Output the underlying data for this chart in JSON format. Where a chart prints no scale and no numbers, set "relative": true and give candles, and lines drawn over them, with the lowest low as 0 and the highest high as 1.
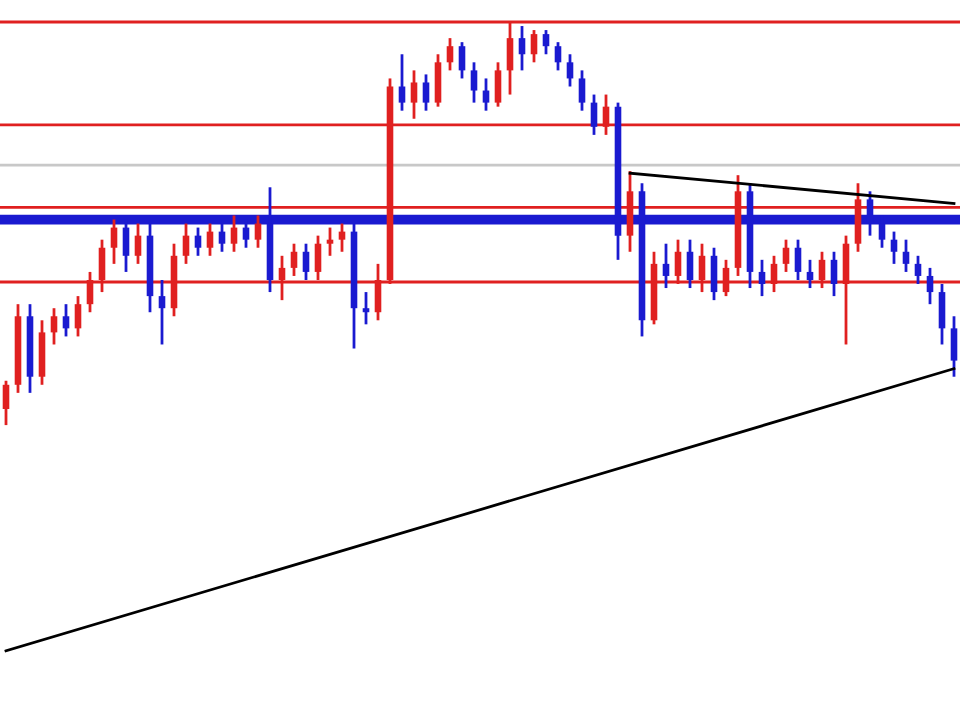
{
  "chart_data": {
    "type": "candlestick",
    "relative": true,
    "grid": false,
    "categories": [
      null,
      null,
      null,
      null,
      null,
      null,
      null,
      null,
      null,
      null,
      null,
      null,
      null,
      null,
      null,
      null,
      null,
      null,
      null,
      null,
      null,
      null,
      null,
      null,
      null,
      null,
      null,
      null,
      null,
      null,
      null,
      null,
      null,
      null,
      null,
      null,
      null,
      null,
      null,
      null,
      null,
      null,
      null,
      null,
      null,
      null,
      null,
      null,
      null,
      null,
      null,
      null,
      null,
      null,
      null,
      null,
      null,
      null,
      null,
      null,
      null,
      null,
      null,
      null,
      null,
      null,
      null,
      null,
      null,
      null,
      null,
      null,
      null,
      null,
      null,
      null,
      null,
      null,
      null,
      null
    ],
    "series": [
      {
        "ohlc": [
          [
            0.04,
            0.11,
            0,
            0.1
          ],
          [
            0.1,
            0.3,
            0.08,
            0.27
          ],
          [
            0.27,
            0.3,
            0.08,
            0.12
          ],
          [
            0.12,
            0.26,
            0.1,
            0.23
          ],
          [
            0.23,
            0.29,
            0.2,
            0.27
          ],
          [
            0.27,
            0.3,
            0.22,
            0.24
          ],
          [
            0.24,
            0.32,
            0.22,
            0.3
          ],
          [
            0.3,
            0.38,
            0.28,
            0.36
          ],
          [
            0.36,
            0.46,
            0.33,
            0.44
          ],
          [
            0.44,
            0.51,
            0.4,
            0.49
          ],
          [
            0.49,
            0.51,
            0.38,
            0.42
          ],
          [
            0.42,
            0.5,
            0.4,
            0.47
          ],
          [
            0.47,
            0.5,
            0.28,
            0.32
          ],
          [
            0.32,
            0.36,
            0.2,
            0.29
          ],
          [
            0.29,
            0.45,
            0.27,
            0.42
          ],
          [
            0.42,
            0.5,
            0.4,
            0.47
          ],
          [
            0.47,
            0.49,
            0.42,
            0.44
          ],
          [
            0.44,
            0.5,
            0.42,
            0.48
          ],
          [
            0.48,
            0.5,
            0.43,
            0.45
          ],
          [
            0.45,
            0.52,
            0.43,
            0.49
          ],
          [
            0.49,
            0.51,
            0.44,
            0.46
          ],
          [
            0.46,
            0.52,
            0.44,
            0.5
          ],
          [
            0.5,
            0.59,
            0.33,
            0.36
          ],
          [
            0.36,
            0.42,
            0.31,
            0.39
          ],
          [
            0.39,
            0.45,
            0.37,
            0.43
          ],
          [
            0.43,
            0.45,
            0.36,
            0.38
          ],
          [
            0.38,
            0.47,
            0.36,
            0.45
          ],
          [
            0.45,
            0.49,
            0.42,
            0.46
          ],
          [
            0.46,
            0.5,
            0.43,
            0.48
          ],
          [
            0.48,
            0.5,
            0.19,
            0.29
          ],
          [
            0.29,
            0.33,
            0.25,
            0.28
          ],
          [
            0.28,
            0.4,
            0.26,
            0.36
          ],
          [
            0.36,
            0.86,
            0.35,
            0.84
          ],
          [
            0.84,
            0.92,
            0.78,
            0.8
          ],
          [
            0.8,
            0.88,
            0.76,
            0.85
          ],
          [
            0.85,
            0.87,
            0.78,
            0.8
          ],
          [
            0.8,
            0.92,
            0.79,
            0.9
          ],
          [
            0.9,
            0.96,
            0.88,
            0.94
          ],
          [
            0.94,
            0.95,
            0.86,
            0.88
          ],
          [
            0.88,
            0.9,
            0.8,
            0.83
          ],
          [
            0.83,
            0.86,
            0.78,
            0.8
          ],
          [
            0.8,
            0.9,
            0.79,
            0.88
          ],
          [
            0.88,
            1.0,
            0.82,
            0.96
          ],
          [
            0.96,
            0.99,
            0.88,
            0.92
          ],
          [
            0.92,
            0.98,
            0.9,
            0.97
          ],
          [
            0.97,
            0.98,
            0.92,
            0.94
          ],
          [
            0.94,
            0.95,
            0.88,
            0.9
          ],
          [
            0.9,
            0.92,
            0.84,
            0.86
          ],
          [
            0.86,
            0.88,
            0.78,
            0.8
          ],
          [
            0.8,
            0.82,
            0.72,
            0.74
          ],
          [
            0.74,
            0.82,
            0.72,
            0.79
          ],
          [
            0.79,
            0.8,
            0.41,
            0.47
          ],
          [
            0.47,
            0.63,
            0.43,
            0.58
          ],
          [
            0.58,
            0.6,
            0.22,
            0.26
          ],
          [
            0.26,
            0.43,
            0.25,
            0.4
          ],
          [
            0.4,
            0.45,
            0.34,
            0.37
          ],
          [
            0.37,
            0.46,
            0.35,
            0.43
          ],
          [
            0.43,
            0.46,
            0.34,
            0.36
          ],
          [
            0.36,
            0.45,
            0.33,
            0.42
          ],
          [
            0.42,
            0.44,
            0.31,
            0.33
          ],
          [
            0.33,
            0.41,
            0.32,
            0.39
          ],
          [
            0.39,
            0.62,
            0.37,
            0.58
          ],
          [
            0.58,
            0.6,
            0.34,
            0.38
          ],
          [
            0.38,
            0.41,
            0.32,
            0.35
          ],
          [
            0.35,
            0.42,
            0.33,
            0.4
          ],
          [
            0.4,
            0.46,
            0.38,
            0.44
          ],
          [
            0.44,
            0.46,
            0.36,
            0.38
          ],
          [
            0.38,
            0.41,
            0.34,
            0.36
          ],
          [
            0.36,
            0.43,
            0.34,
            0.41
          ],
          [
            0.41,
            0.43,
            0.32,
            0.35
          ],
          [
            0.35,
            0.47,
            0.2,
            0.45
          ],
          [
            0.45,
            0.6,
            0.43,
            0.56
          ],
          [
            0.56,
            0.58,
            0.47,
            0.5
          ],
          [
            0.5,
            0.52,
            0.44,
            0.46
          ],
          [
            0.46,
            0.48,
            0.4,
            0.43
          ],
          [
            0.43,
            0.46,
            0.38,
            0.4
          ],
          [
            0.4,
            0.42,
            0.35,
            0.37
          ],
          [
            0.37,
            0.39,
            0.3,
            0.33
          ],
          [
            0.33,
            0.35,
            0.2,
            0.24
          ],
          [
            0.24,
            0.27,
            0.12,
            0.16
          ]
        ],
        "colors": [
          "#e02020",
          "#e02020",
          "#1a1ad0",
          "#e02020",
          "#e02020",
          "#1a1ad0",
          "#e02020",
          "#e02020",
          "#e02020",
          "#e02020",
          "#1a1ad0",
          "#e02020",
          "#1a1ad0",
          "#1a1ad0",
          "#e02020",
          "#e02020",
          "#1a1ad0",
          "#e02020",
          "#1a1ad0",
          "#e02020",
          "#1a1ad0",
          "#e02020",
          "#1a1ad0",
          "#e02020",
          "#e02020",
          "#1a1ad0",
          "#e02020",
          "#e02020",
          "#e02020",
          "#1a1ad0",
          "#1a1ad0",
          "#e02020",
          "#e02020",
          "#1a1ad0",
          "#e02020",
          "#1a1ad0",
          "#e02020",
          "#e02020",
          "#1a1ad0",
          "#1a1ad0",
          "#1a1ad0",
          "#e02020",
          "#e02020",
          "#1a1ad0",
          "#e02020",
          "#1a1ad0",
          "#1a1ad0",
          "#1a1ad0",
          "#1a1ad0",
          "#1a1ad0",
          "#e02020",
          "#1a1ad0",
          "#e02020",
          "#1a1ad0",
          "#e02020",
          "#1a1ad0",
          "#e02020",
          "#1a1ad0",
          "#e02020",
          "#1a1ad0",
          "#e02020",
          "#e02020",
          "#1a1ad0",
          "#1a1ad0",
          "#e02020",
          "#e02020",
          "#1a1ad0",
          "#1a1ad0",
          "#e02020",
          "#1a1ad0",
          "#e02020",
          "#e02020",
          "#1a1ad0",
          "#1a1ad0",
          "#1a1ad0",
          "#1a1ad0",
          "#1a1ad0",
          "#1a1ad0",
          "#1a1ad0",
          "#1a1ad0"
        ]
      },
      {
        "type": "line",
        "color": "#000000",
        "values": [
          -0.56,
          null,
          null,
          null,
          null,
          null,
          null,
          null,
          null,
          null,
          null,
          null,
          null,
          null,
          null,
          null,
          null,
          null,
          null,
          null,
          null,
          null,
          null,
          null,
          null,
          null,
          null,
          null,
          null,
          null,
          null,
          null,
          null,
          null,
          null,
          null,
          null,
          null,
          null,
          null,
          null,
          null,
          null,
          null,
          null,
          null,
          null,
          null,
          null,
          null,
          null,
          null,
          null,
          null,
          null,
          null,
          null,
          null,
          null,
          null,
          null,
          null,
          null,
          null,
          null,
          null,
          null,
          null,
          null,
          null,
          null,
          null,
          null,
          null,
          null,
          null,
          null,
          null,
          null,
          0.14
        ]
      },
      {
        "type": "line",
        "color": "#000000",
        "values": [
          null,
          null,
          null,
          null,
          null,
          null,
          null,
          null,
          null,
          null,
          null,
          null,
          null,
          null,
          null,
          null,
          null,
          null,
          null,
          null,
          null,
          null,
          null,
          null,
          null,
          null,
          null,
          null,
          null,
          null,
          null,
          null,
          null,
          null,
          null,
          null,
          null,
          null,
          null,
          null,
          null,
          null,
          null,
          null,
          null,
          null,
          null,
          null,
          null,
          null,
          null,
          null,
          0.625,
          null,
          null,
          null,
          null,
          null,
          null,
          null,
          null,
          null,
          null,
          null,
          null,
          null,
          null,
          null,
          null,
          null,
          null,
          null,
          null,
          null,
          null,
          null,
          null,
          null,
          null,
          0.55
        ]
      }
    ],
    "ref_lines": [
      {
        "axis": "y",
        "value": 1.0,
        "color": "#e02020"
      },
      {
        "axis": "y",
        "value": 0.745,
        "color": "#e02020"
      },
      {
        "axis": "y",
        "value": 0.645,
        "color": "#c8c8c8"
      },
      {
        "axis": "y",
        "value": 0.54,
        "color": "#e02020"
      },
      {
        "axis": "y",
        "value": 0.51,
        "color": "#1a1ad0"
      },
      {
        "axis": "y",
        "value": 0.355,
        "color": "#e02020"
      }
    ]
  }
}
